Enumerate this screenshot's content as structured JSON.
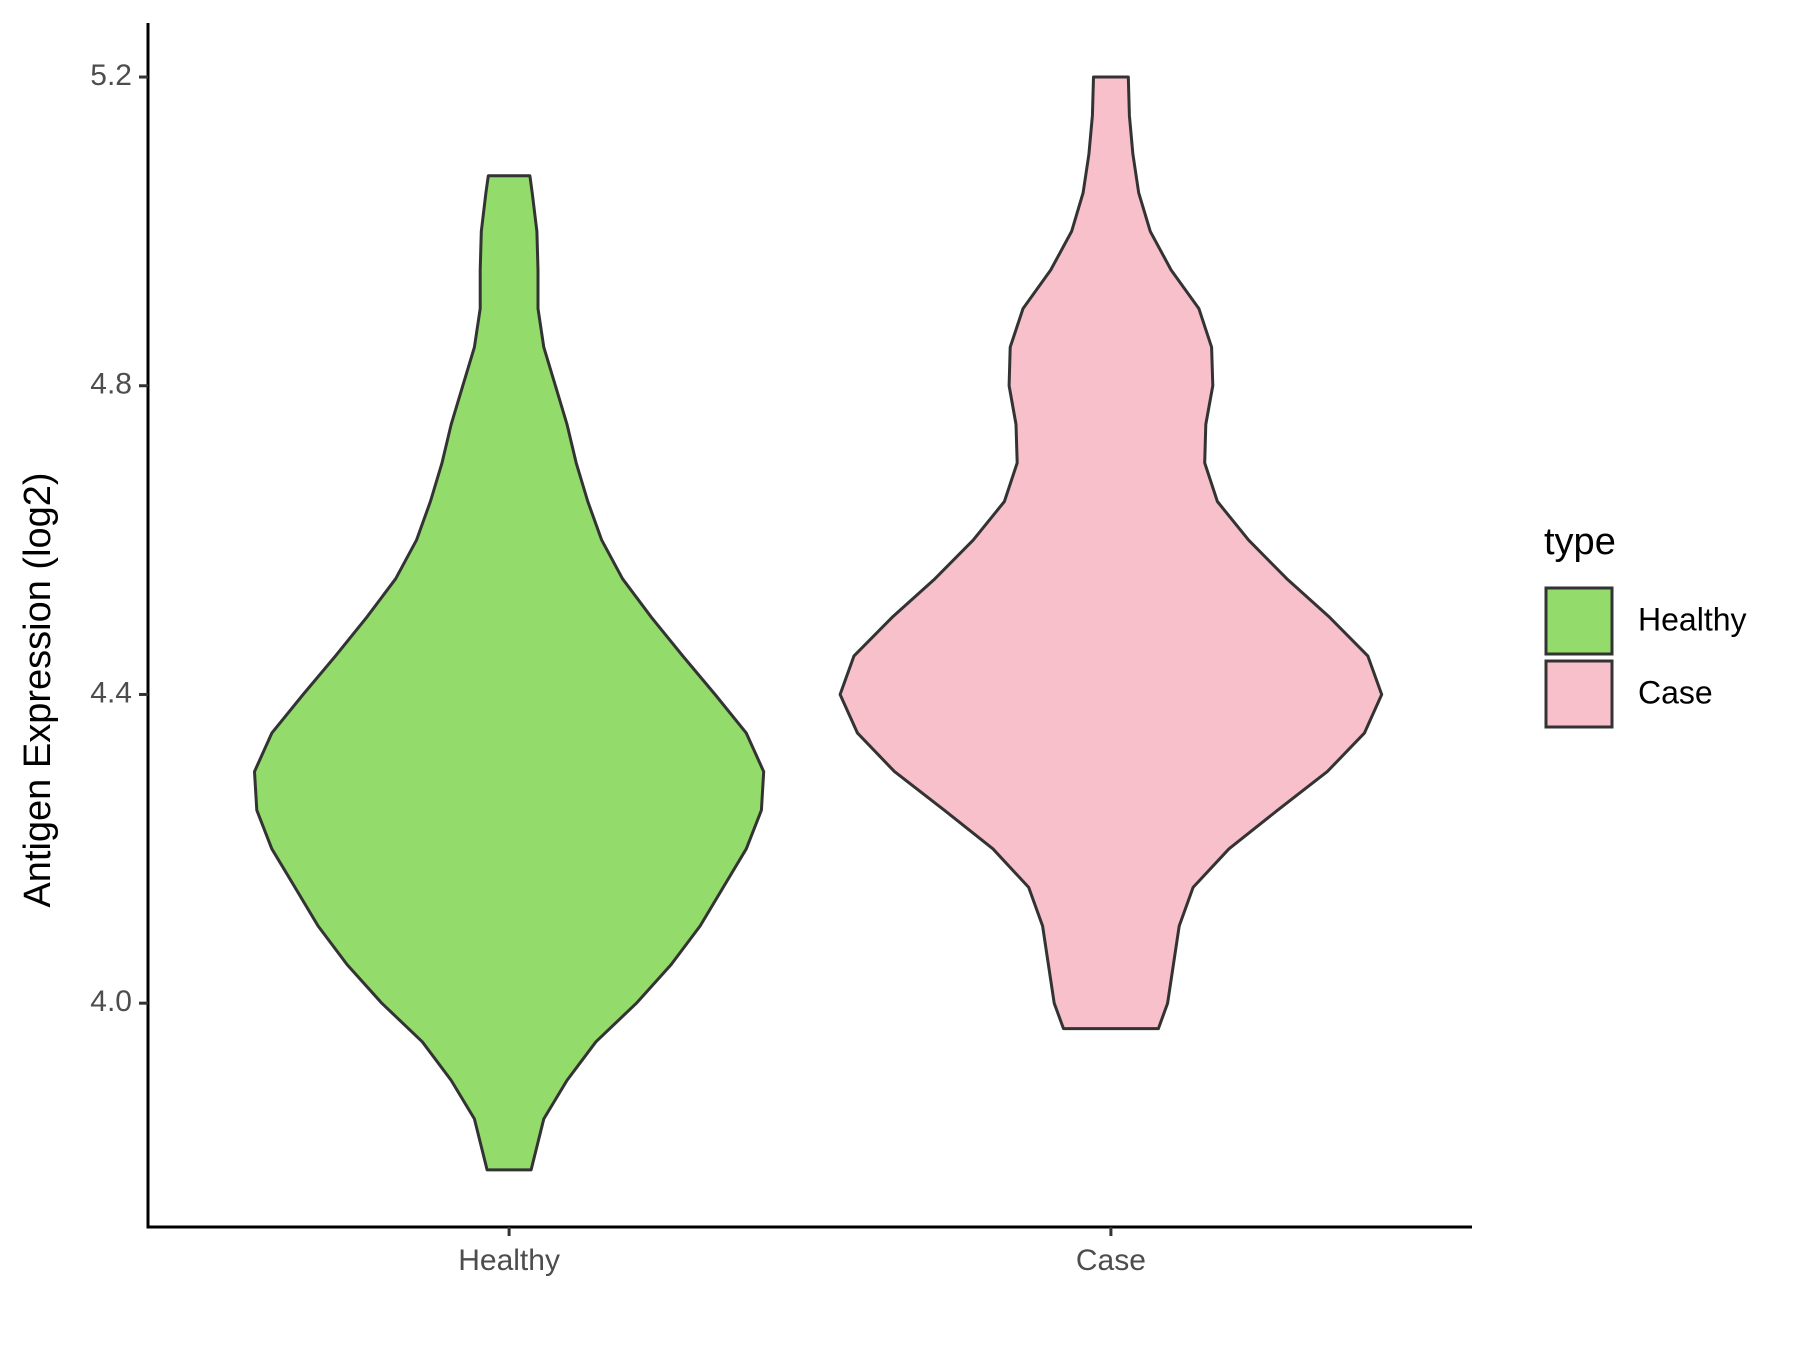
{
  "chart_data": {
    "type": "violin",
    "y_label": "Antigen Expression (log2)",
    "categories": [
      "Healthy",
      "Case"
    ],
    "legend_title": "type",
    "legend_position": "right",
    "ylim": [
      3.71,
      5.27
    ],
    "yticks": [
      {
        "value": 4,
        "label": "4.0"
      },
      4.4,
      4.8,
      5.2
    ],
    "series": [
      {
        "name": "Healthy",
        "color": "#93dc6b",
        "y": [
          3.784,
          3.85,
          3.9,
          3.95,
          4.0,
          4.05,
          4.1,
          4.15,
          4.2,
          4.25,
          4.3,
          4.35,
          4.4,
          4.45,
          4.5,
          4.55,
          4.6,
          4.65,
          4.7,
          4.75,
          4.8,
          4.85,
          4.9,
          4.95,
          5.0,
          5.05,
          5.072
        ],
        "density": [
          19,
          30,
          50,
          75,
          110,
          140,
          165,
          185,
          205,
          218,
          220,
          205,
          178,
          150,
          123,
          98,
          80,
          68,
          58,
          50,
          40,
          30,
          25,
          25,
          24,
          20,
          18
        ]
      },
      {
        "name": "Case",
        "color": "#f7c0cb",
        "y": [
          3.967,
          4.0,
          4.05,
          4.1,
          4.15,
          4.2,
          4.25,
          4.3,
          4.35,
          4.4,
          4.45,
          4.5,
          4.55,
          4.6,
          4.65,
          4.7,
          4.75,
          4.8,
          4.85,
          4.9,
          4.95,
          5.0,
          5.05,
          5.1,
          5.15,
          5.2
        ],
        "density": [
          41,
          49,
          54,
          59,
          71,
          102,
          144,
          187,
          219,
          234,
          222,
          189,
          152,
          119,
          92,
          81,
          82,
          88,
          87,
          76,
          52,
          34,
          24,
          19,
          16,
          15
        ]
      }
    ]
  }
}
